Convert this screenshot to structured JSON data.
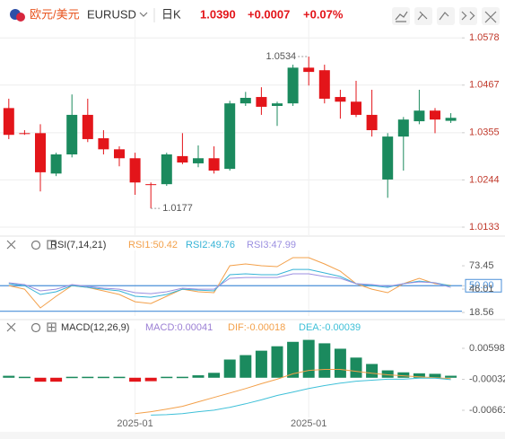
{
  "header": {
    "symbol_name": "欧元/美元",
    "symbol": "EURUSD",
    "period": "日K",
    "price": "1.0390",
    "change": "+0.0007",
    "change_pct": "+0.07%"
  },
  "chart_data": [
    {
      "type": "candlestick",
      "categories": [
        null,
        null,
        null,
        null,
        null,
        null,
        null,
        null,
        "2025-01",
        null,
        null,
        null,
        null,
        null,
        null,
        null,
        null,
        null,
        null,
        "2025-01",
        null,
        null,
        null,
        null,
        null,
        null,
        null,
        null,
        null
      ],
      "open": [
        1.0413,
        1.0354,
        1.0354,
        1.0259,
        1.0304,
        1.0397,
        1.0342,
        1.0316,
        1.0295,
        1.0234,
        1.0234,
        1.03,
        1.0283,
        1.0295,
        1.027,
        1.0424,
        1.0439,
        1.0418,
        1.0424,
        1.0508,
        1.0502,
        1.0439,
        1.0428,
        1.0397,
        1.0245,
        1.0346,
        1.0382,
        1.0407,
        1.0383
      ],
      "high": [
        1.0435,
        1.0361,
        1.0375,
        1.0308,
        1.0445,
        1.0435,
        1.0361,
        1.0323,
        1.0308,
        1.0238,
        1.0308,
        1.0354,
        1.0325,
        1.0323,
        1.043,
        1.0451,
        1.0462,
        1.0428,
        1.0515,
        1.0534,
        1.0515,
        1.0456,
        1.0477,
        1.0456,
        1.0354,
        1.0392,
        1.0456,
        1.0413,
        1.0401
      ],
      "low": [
        1.034,
        1.035,
        1.0217,
        1.0253,
        1.0297,
        1.0333,
        1.0304,
        1.0276,
        1.0209,
        1.0177,
        1.023,
        1.0281,
        1.0274,
        1.0259,
        1.0266,
        1.0418,
        1.0397,
        1.0371,
        1.0418,
        1.0466,
        1.0424,
        1.0388,
        1.0392,
        1.0346,
        1.0202,
        1.0266,
        1.0375,
        1.0354,
        1.0378
      ],
      "close": [
        1.035,
        1.0352,
        1.0262,
        1.0304,
        1.0397,
        1.034,
        1.0316,
        1.0295,
        1.0238,
        1.0232,
        1.0304,
        1.0285,
        1.0295,
        1.0266,
        1.0424,
        1.0437,
        1.0416,
        1.0424,
        1.0508,
        1.0498,
        1.0435,
        1.0428,
        1.0397,
        1.0361,
        1.0346,
        1.0386,
        1.0407,
        1.0386,
        1.039
      ],
      "up_color": "#1b8a5e",
      "down_color": "#e3151a",
      "ylim": [
        1.0114,
        1.0608
      ],
      "yticks": [
        1.0133,
        1.0244,
        1.0355,
        1.0467,
        1.0578
      ],
      "grid": true
    },
    {
      "type": "line",
      "title": "RSI(7,14,21)",
      "series": [
        {
          "name": "RSI1:50.42",
          "color": "#f3a04a",
          "values": [
            50.2,
            46.0,
            23.9,
            37.6,
            50.2,
            48.1,
            43.9,
            39.7,
            31.2,
            29.1,
            37.6,
            46.0,
            42.9,
            41.8,
            73.5,
            75.6,
            73.5,
            72.4,
            83.0,
            83.0,
            75.6,
            67.1,
            52.4,
            46.0,
            41.8,
            52.4,
            58.7,
            52.4,
            50.42
          ]
        },
        {
          "name": "RSI2:49.76",
          "color": "#36b3d6",
          "values": [
            52.4,
            50.2,
            39.7,
            42.9,
            50.2,
            48.1,
            46.0,
            43.9,
            37.6,
            36.5,
            39.7,
            46.0,
            44.9,
            43.9,
            62.9,
            64.0,
            62.9,
            62.9,
            69.2,
            69.2,
            65.0,
            60.8,
            52.4,
            50.2,
            48.1,
            52.4,
            55.5,
            53.4,
            49.76
          ]
        },
        {
          "name": "RSI3:47.99",
          "color": "#9b8fe0",
          "values": [
            53.4,
            51.3,
            43.9,
            46.0,
            51.3,
            49.2,
            47.1,
            46.0,
            41.8,
            40.7,
            42.9,
            47.1,
            46.0,
            46.0,
            58.7,
            59.7,
            59.7,
            59.7,
            64.0,
            64.0,
            60.8,
            58.7,
            52.4,
            51.3,
            49.2,
            52.4,
            54.5,
            53.4,
            47.99
          ]
        }
      ],
      "ylim": [
        14.4,
        85.1
      ],
      "yticks": [
        73.45,
        {
          "value": 50,
          "label": "50.00"
        },
        46.01,
        18.56
      ],
      "hlines": [
        50,
        20
      ],
      "hline_color": "#4a8fd8"
    },
    {
      "type": "macd",
      "title": "MACD(12,26,9)",
      "series": [
        {
          "name": "MACD:0.00041",
          "type": "bar",
          "color": "#1b8a5e",
          "negative_color": "#e3151a",
          "label_color": "#9b7fd4",
          "values": [
            0.0004,
            0.0002,
            -0.0008,
            -0.0008,
            0.0002,
            0.0002,
            0.0002,
            0.0002,
            -0.0008,
            -0.0007,
            0.0002,
            0.0002,
            0.0005,
            0.001,
            0.0037,
            0.0046,
            0.0055,
            0.0064,
            0.0073,
            0.0077,
            0.007,
            0.0059,
            0.0041,
            0.0028,
            0.0015,
            0.0011,
            0.0009,
            0.0008,
            0.00041
          ]
        },
        {
          "name": "DIF:-0.00018",
          "type": "line",
          "color": "#f3a04a",
          "values": [
            null,
            null,
            null,
            null,
            null,
            null,
            null,
            null,
            -0.0073,
            -0.0069,
            -0.0064,
            -0.0058,
            -0.0049,
            -0.004,
            -0.0031,
            -0.0022,
            -0.0012,
            -0.0003,
            0.0008,
            0.0015,
            0.0017,
            0.0017,
            0.0013,
            0.0009,
            0.0006,
            0.0004,
            0.0002,
            0.0,
            -0.00018
          ]
        },
        {
          "name": "DEA:-0.00039",
          "type": "line",
          "color": "#3fc0d8",
          "values": [
            null,
            null,
            null,
            null,
            null,
            null,
            null,
            null,
            null,
            -0.0076,
            -0.0075,
            -0.0073,
            -0.0069,
            -0.0066,
            -0.006,
            -0.0053,
            -0.0045,
            -0.0036,
            -0.0029,
            -0.0022,
            -0.0016,
            -0.0011,
            -0.0007,
            -0.0005,
            -0.0003,
            -0.0003,
            -0.0001,
            -0.0001,
            -0.00039
          ]
        }
      ],
      "ylim": [
        -0.00807,
        0.0089
      ],
      "yticks": [
        0.00598,
        -0.00032,
        -0.00661
      ]
    }
  ]
}
